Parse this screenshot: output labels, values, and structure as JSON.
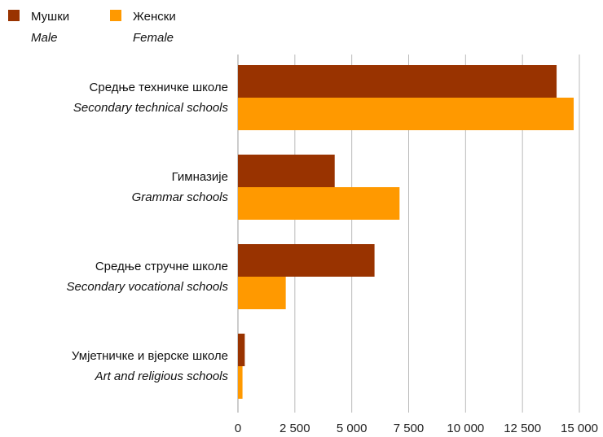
{
  "chart_data": {
    "type": "bar",
    "orientation": "horizontal",
    "categories": [
      {
        "label": "Средње техничке школе",
        "label_en": "Secondary technical schools"
      },
      {
        "label": "Гимназије",
        "label_en": "Grammar schools"
      },
      {
        "label": "Средње стручне школе",
        "label_en": "Secondary vocational schools"
      },
      {
        "label": "Умјетничке и вјерске школе",
        "label_en": "Art and religious schools"
      }
    ],
    "series": [
      {
        "name": "Мушки",
        "name_en": "Male",
        "color": "#993300",
        "values": [
          14000,
          4250,
          6000,
          300
        ]
      },
      {
        "name": "Женски",
        "name_en": "Female",
        "color": "#ff9900",
        "values": [
          14750,
          7100,
          2100,
          200
        ]
      }
    ],
    "xlim": [
      0,
      15000
    ],
    "xticks": [
      0,
      2500,
      5000,
      7500,
      10000,
      12500,
      15000
    ],
    "xtick_labels": [
      "0",
      "2 500",
      "5 000",
      "7 500",
      "10 000",
      "12 500",
      "15 000"
    ],
    "grid": "vertical",
    "legend_position": "top-left",
    "gridline_color": "#bbbbbb"
  }
}
